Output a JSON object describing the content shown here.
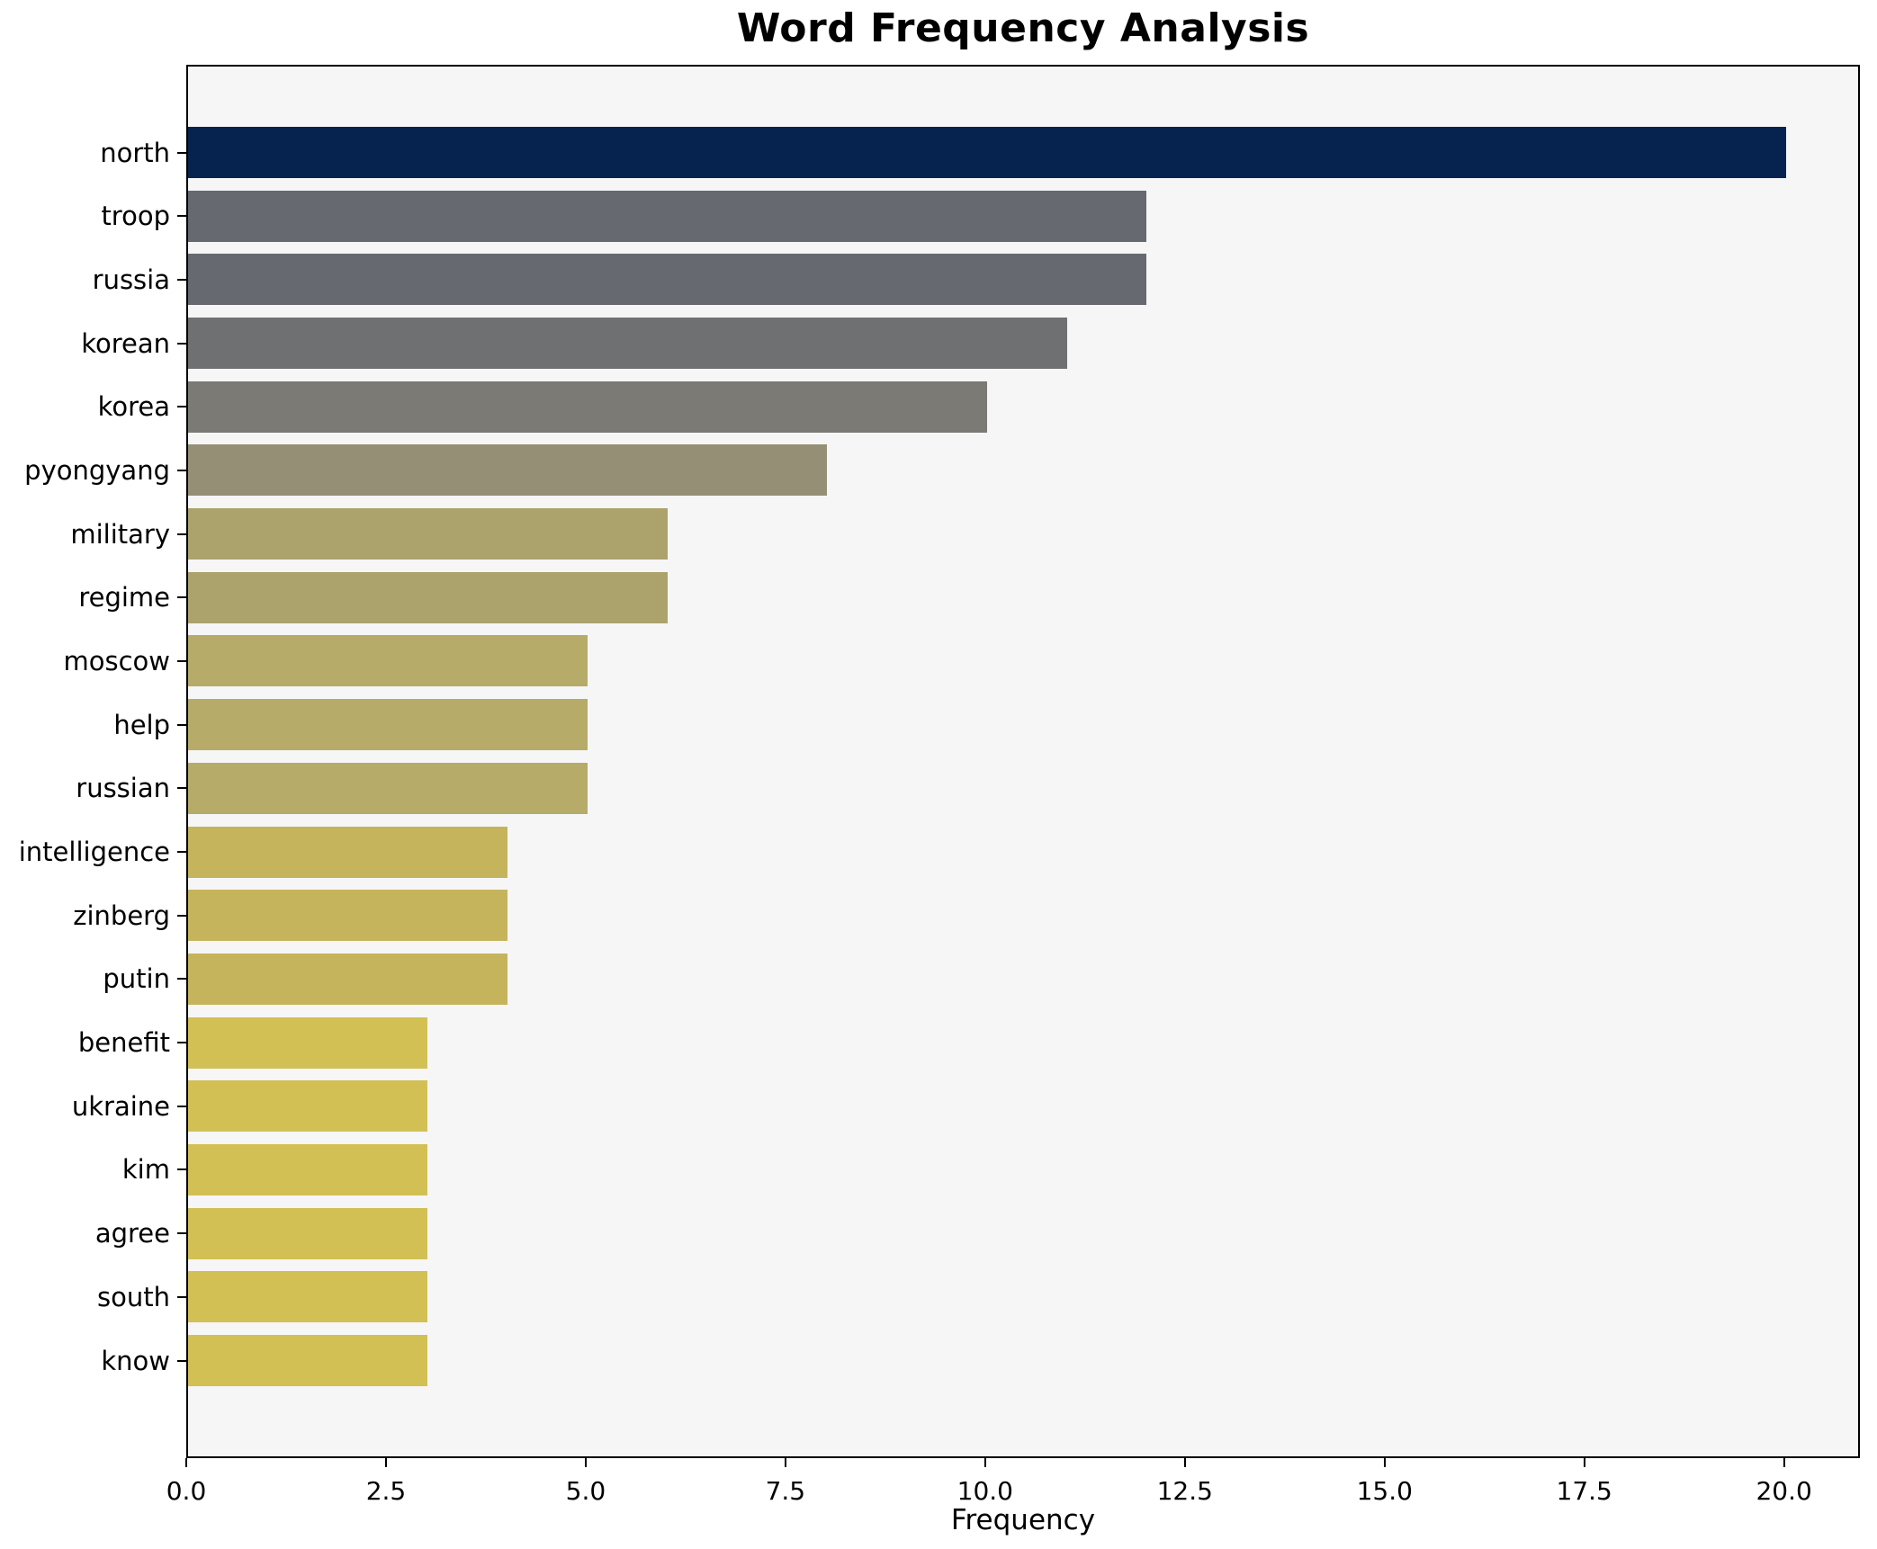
{
  "chart_data": {
    "type": "bar",
    "orientation": "horizontal",
    "title": "Word Frequency Analysis",
    "xlabel": "Frequency",
    "ylabel": "",
    "categories": [
      "north",
      "troop",
      "russia",
      "korean",
      "korea",
      "pyongyang",
      "military",
      "regime",
      "moscow",
      "help",
      "russian",
      "intelligence",
      "zinberg",
      "putin",
      "benefit",
      "ukraine",
      "kim",
      "agree",
      "south",
      "know"
    ],
    "values": [
      20,
      12,
      12,
      11,
      10,
      8,
      6,
      6,
      5,
      5,
      5,
      4,
      4,
      4,
      3,
      3,
      3,
      3,
      3,
      3
    ],
    "bar_colors": [
      "#05234e",
      "#666970",
      "#666970",
      "#6f7071",
      "#7b7a74",
      "#958f76",
      "#aca26b",
      "#aca26b",
      "#b6ab68",
      "#b6ab68",
      "#b6ab68",
      "#c6b45d",
      "#c6b45d",
      "#c6b45d",
      "#d2c055",
      "#d2c055",
      "#d2c055",
      "#d2c055",
      "#d2c055",
      "#d2c055"
    ],
    "x_ticks": [
      0,
      2.5,
      5,
      7.5,
      10,
      12.5,
      15,
      17.5,
      20
    ],
    "x_tick_labels": [
      "0.0",
      "2.5",
      "5.0",
      "7.5",
      "10.0",
      "12.5",
      "15.0",
      "17.5",
      "20.0"
    ],
    "xlim": [
      0,
      20.95
    ],
    "grid": false,
    "legend": "none",
    "colormap": "cividis-reversed",
    "plot_bg": "#f6f6f7",
    "figure_bg": "#ffffff",
    "spine_color": "#000000"
  }
}
